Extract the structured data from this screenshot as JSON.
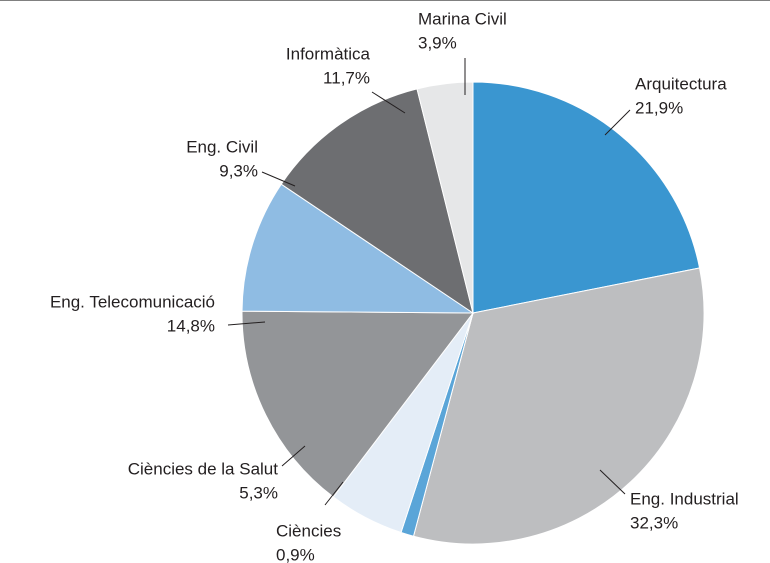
{
  "chart_data": {
    "type": "pie",
    "categories": [
      "Arquitectura",
      "Eng. Industrial",
      "Ciències",
      "Ciències de la Salut",
      "Eng. Telecomunicació",
      "Eng. Civil",
      "Informàtica",
      "Marina Civil"
    ],
    "values": [
      21.9,
      32.3,
      0.9,
      5.3,
      14.8,
      9.3,
      11.7,
      3.9
    ],
    "value_labels": [
      "21,9%",
      "32,3%",
      "0,9%",
      "5,3%",
      "14,8%",
      "9,3%",
      "11,7%",
      "3,9%"
    ],
    "colors": [
      "#3a96d0",
      "#bdbec0",
      "#5aa5d8",
      "#e4edf7",
      "#939598",
      "#8fbce3",
      "#6d6e71",
      "#e6e7e8"
    ]
  }
}
